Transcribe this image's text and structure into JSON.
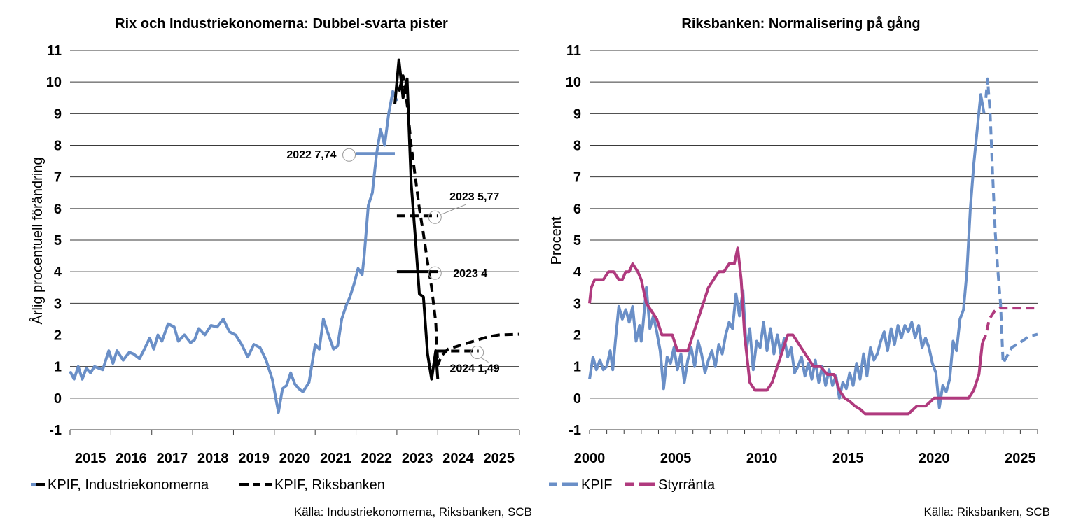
{
  "chart_data": [
    {
      "type": "line",
      "title": "Rix och Industriekonomerna: Dubbel-svarta pister",
      "ylabel": "Årlig procentuell förändring",
      "xlabel": "",
      "ylim": [
        -1,
        11
      ],
      "yticks": [
        "-1",
        "0",
        "1",
        "2",
        "3",
        "4",
        "5",
        "6",
        "7",
        "8",
        "9",
        "10",
        "11"
      ],
      "xlim": [
        2015,
        2026
      ],
      "xticks": [
        "2015",
        "2016",
        "2017",
        "2018",
        "2019",
        "2020",
        "2021",
        "2022",
        "2023",
        "2024",
        "2025"
      ],
      "grid": true,
      "series": [
        {
          "name": "KPIF",
          "color": "#6a8fc7",
          "style": "solid",
          "x": [
            2015.0,
            2015.1,
            2015.2,
            2015.3,
            2015.4,
            2015.5,
            2015.6,
            2015.8,
            2015.95,
            2016.05,
            2016.15,
            2016.3,
            2016.45,
            2016.55,
            2016.7,
            2016.8,
            2016.95,
            2017.05,
            2017.15,
            2017.25,
            2017.4,
            2017.55,
            2017.65,
            2017.8,
            2017.95,
            2018.05,
            2018.15,
            2018.3,
            2018.45,
            2018.6,
            2018.75,
            2018.9,
            2019.05,
            2019.2,
            2019.35,
            2019.5,
            2019.65,
            2019.8,
            2019.95,
            2020.1,
            2020.2,
            2020.3,
            2020.4,
            2020.5,
            2020.6,
            2020.7,
            2020.85,
            2021.0,
            2021.1,
            2021.2,
            2021.3,
            2021.45,
            2021.55,
            2021.65,
            2021.75,
            2021.85,
            2021.95,
            2022.05,
            2022.15,
            2022.2,
            2022.3,
            2022.4,
            2022.5,
            2022.6,
            2022.7,
            2022.8,
            2022.9,
            2023.0
          ],
          "y": [
            0.85,
            0.6,
            1.0,
            0.6,
            0.95,
            0.8,
            1.0,
            0.9,
            1.5,
            1.1,
            1.5,
            1.2,
            1.45,
            1.4,
            1.25,
            1.5,
            1.9,
            1.55,
            2.0,
            1.8,
            2.35,
            2.25,
            1.8,
            2.0,
            1.75,
            1.85,
            2.2,
            2.0,
            2.3,
            2.25,
            2.5,
            2.1,
            2.0,
            1.7,
            1.3,
            1.7,
            1.6,
            1.2,
            0.6,
            -0.45,
            0.3,
            0.4,
            0.8,
            0.45,
            0.3,
            0.2,
            0.5,
            1.7,
            1.55,
            2.5,
            2.1,
            1.55,
            1.65,
            2.5,
            2.9,
            3.2,
            3.6,
            4.1,
            3.9,
            4.5,
            6.1,
            6.5,
            7.7,
            8.5,
            8.0,
            9.0,
            9.7,
            9.4
          ]
        },
        {
          "name": "KPIF, Industriekonomerna",
          "color": "#000000",
          "style": "solid",
          "x": [
            2022.95,
            2023.05,
            2023.15,
            2023.25,
            2023.35,
            2023.45,
            2023.55,
            2023.65,
            2023.75,
            2023.85,
            2023.95,
            2024.0
          ],
          "y": [
            9.3,
            10.7,
            9.5,
            10.1,
            6.8,
            5.1,
            3.3,
            3.2,
            1.4,
            0.6,
            1.5,
            0.6
          ]
        },
        {
          "name": "KPIF, Riksbanken",
          "color": "#000000",
          "style": "dashed",
          "x": [
            2023.05,
            2023.15,
            2023.25,
            2023.35,
            2023.45,
            2023.55,
            2023.65,
            2023.75,
            2023.85,
            2023.95,
            2024.0,
            2024.1,
            2024.25,
            2024.5,
            2024.75,
            2025.0,
            2025.25,
            2025.5,
            2026.0
          ],
          "y": [
            9.7,
            10.2,
            9.3,
            8.0,
            7.0,
            6.0,
            5.2,
            4.3,
            3.5,
            2.4,
            1.05,
            1.35,
            1.55,
            1.65,
            1.75,
            1.85,
            1.95,
            2.0,
            2.02
          ]
        }
      ],
      "annotation_bars": [
        {
          "label": "2022 7,74",
          "value": 7.74,
          "x_start": 2022.0,
          "x_end": 2022.95,
          "color": "#6a8fc7",
          "style": "solid",
          "label_side": "left"
        },
        {
          "label": "2023 5,77",
          "value": 5.77,
          "x_start": 2023.0,
          "x_end": 2024.0,
          "color": "#000000",
          "style": "dashed",
          "label_side": "above"
        },
        {
          "label": "2023 4",
          "value": 4.0,
          "x_start": 2023.0,
          "x_end": 2024.0,
          "color": "#000000",
          "style": "solid",
          "label_side": "right"
        },
        {
          "label": "2024 1,49",
          "value": 1.49,
          "x_start": 2024.0,
          "x_end": 2025.0,
          "color": "#000000",
          "style": "dashed",
          "label_side": "below"
        }
      ],
      "legend": [
        {
          "label": "KPIF, Industriekonomerna",
          "colors": [
            "#6a8fc7",
            "#000000"
          ],
          "style": "solid"
        },
        {
          "label": "KPIF, Riksbanken",
          "colors": [
            "#000000",
            "#000000"
          ],
          "style": "dashed"
        }
      ],
      "source": "Källa: Industriekonomerna, Riksbanken, SCB"
    },
    {
      "type": "line",
      "title": "Riksbanken: Normalisering på gång",
      "ylabel": "Procent",
      "xlabel": "",
      "ylim": [
        -1,
        11
      ],
      "yticks": [
        "-1",
        "0",
        "1",
        "2",
        "3",
        "4",
        "5",
        "6",
        "7",
        "8",
        "9",
        "10",
        "11"
      ],
      "xlim": [
        2000,
        2026
      ],
      "xticks": [
        "2000",
        "2005",
        "2010",
        "2015",
        "2020",
        "2025"
      ],
      "grid": true,
      "series": [
        {
          "name": "KPIF",
          "color": "#6a8fc7",
          "style": "solid",
          "x": [
            2000.0,
            2000.2,
            2000.4,
            2000.6,
            2000.8,
            2001.0,
            2001.2,
            2001.35,
            2001.5,
            2001.7,
            2001.9,
            2002.1,
            2002.3,
            2002.5,
            2002.7,
            2002.9,
            2003.0,
            2003.1,
            2003.3,
            2003.5,
            2003.7,
            2003.9,
            2004.1,
            2004.3,
            2004.5,
            2004.7,
            2004.9,
            2005.1,
            2005.3,
            2005.5,
            2005.7,
            2005.9,
            2006.1,
            2006.3,
            2006.5,
            2006.7,
            2006.9,
            2007.1,
            2007.3,
            2007.5,
            2007.7,
            2007.9,
            2008.1,
            2008.3,
            2008.5,
            2008.7,
            2008.9,
            2009.1,
            2009.3,
            2009.5,
            2009.7,
            2009.9,
            2010.1,
            2010.3,
            2010.5,
            2010.7,
            2010.9,
            2011.1,
            2011.3,
            2011.5,
            2011.7,
            2011.9,
            2012.1,
            2012.3,
            2012.5,
            2012.7,
            2012.9,
            2013.1,
            2013.3,
            2013.5,
            2013.7,
            2013.9,
            2014.1,
            2014.3,
            2014.5,
            2014.7,
            2014.9,
            2015.1,
            2015.3,
            2015.5,
            2015.7,
            2015.9,
            2016.1,
            2016.3,
            2016.5,
            2016.7,
            2016.9,
            2017.1,
            2017.3,
            2017.5,
            2017.7,
            2017.9,
            2018.1,
            2018.3,
            2018.5,
            2018.7,
            2018.9,
            2019.1,
            2019.3,
            2019.5,
            2019.7,
            2019.9,
            2020.1,
            2020.3,
            2020.5,
            2020.7,
            2020.9,
            2021.1,
            2021.3,
            2021.5,
            2021.7,
            2021.9,
            2022.1,
            2022.3,
            2022.5,
            2022.7,
            2022.9
          ],
          "y": [
            0.6,
            1.3,
            0.9,
            1.2,
            0.9,
            1.0,
            1.5,
            0.9,
            1.8,
            2.9,
            2.5,
            2.8,
            2.4,
            2.9,
            1.8,
            2.3,
            1.8,
            2.3,
            3.5,
            2.2,
            2.6,
            2.1,
            1.5,
            0.3,
            1.3,
            1.1,
            1.6,
            0.9,
            1.4,
            0.5,
            1.2,
            1.6,
            1.0,
            1.8,
            1.4,
            0.8,
            1.2,
            1.5,
            1.0,
            1.7,
            1.4,
            2.0,
            2.4,
            2.2,
            3.3,
            2.6,
            3.4,
            1.5,
            2.2,
            0.9,
            1.8,
            1.6,
            2.4,
            1.5,
            2.2,
            1.4,
            2.0,
            1.4,
            1.9,
            1.3,
            1.6,
            0.8,
            1.0,
            1.3,
            0.7,
            1.1,
            0.6,
            1.2,
            0.5,
            1.0,
            0.4,
            0.9,
            0.4,
            0.7,
            0.0,
            0.5,
            0.3,
            0.8,
            0.4,
            1.1,
            0.6,
            1.4,
            0.7,
            1.6,
            1.2,
            1.4,
            1.8,
            2.1,
            1.5,
            2.2,
            1.7,
            2.3,
            1.9,
            2.3,
            2.1,
            2.4,
            1.9,
            2.3,
            1.6,
            1.9,
            1.6,
            1.1,
            0.8,
            -0.3,
            0.4,
            0.2,
            0.6,
            1.8,
            1.5,
            2.5,
            2.8,
            4.0,
            6.0,
            7.4,
            8.5,
            9.6,
            9.0
          ]
        },
        {
          "name": "KPIF prognos",
          "color": "#6a8fc7",
          "style": "dashed",
          "x": [
            2023.0,
            2023.1,
            2023.25,
            2023.4,
            2023.55,
            2023.7,
            2023.85,
            2024.0,
            2024.2,
            2024.5,
            2024.8,
            2025.1,
            2025.5,
            2026.0
          ],
          "y": [
            9.5,
            10.1,
            9.0,
            7.0,
            5.2,
            4.0,
            3.0,
            1.1,
            1.3,
            1.6,
            1.7,
            1.8,
            1.95,
            2.02
          ]
        },
        {
          "name": "Styrränta",
          "color": "#b03a7e",
          "style": "solid",
          "x": [
            2000.0,
            2000.1,
            2000.3,
            2000.5,
            2000.8,
            2001.1,
            2001.4,
            2001.7,
            2001.9,
            2002.1,
            2002.3,
            2002.5,
            2002.8,
            2003.0,
            2003.3,
            2003.6,
            2003.9,
            2004.2,
            2004.5,
            2004.8,
            2005.1,
            2005.4,
            2005.7,
            2006.0,
            2006.3,
            2006.6,
            2006.9,
            2007.2,
            2007.5,
            2007.8,
            2008.1,
            2008.4,
            2008.6,
            2008.8,
            2009.0,
            2009.3,
            2009.6,
            2009.9,
            2010.3,
            2010.6,
            2010.9,
            2011.2,
            2011.5,
            2011.8,
            2012.1,
            2012.4,
            2012.7,
            2013.0,
            2013.4,
            2013.8,
            2014.2,
            2014.5,
            2014.8,
            2015.1,
            2015.4,
            2015.7,
            2016.0,
            2016.5,
            2017.0,
            2017.5,
            2018.0,
            2018.5,
            2019.0,
            2019.5,
            2020.0,
            2020.5,
            2021.0,
            2021.5,
            2022.0,
            2022.3,
            2022.6,
            2022.8
          ],
          "y": [
            3.0,
            3.5,
            3.75,
            3.75,
            3.75,
            4.0,
            4.0,
            3.75,
            3.75,
            4.0,
            4.0,
            4.25,
            4.0,
            3.75,
            3.0,
            2.75,
            2.5,
            2.0,
            2.0,
            2.0,
            1.5,
            1.5,
            1.5,
            2.0,
            2.5,
            3.0,
            3.5,
            3.75,
            4.0,
            4.0,
            4.25,
            4.25,
            4.75,
            3.75,
            2.0,
            0.5,
            0.25,
            0.25,
            0.25,
            0.5,
            1.0,
            1.5,
            2.0,
            2.0,
            1.75,
            1.5,
            1.25,
            1.0,
            1.0,
            0.75,
            0.75,
            0.25,
            0.0,
            -0.1,
            -0.25,
            -0.35,
            -0.5,
            -0.5,
            -0.5,
            -0.5,
            -0.5,
            -0.5,
            -0.25,
            -0.25,
            0.0,
            0.0,
            0.0,
            0.0,
            0.0,
            0.25,
            0.75,
            1.75
          ]
        },
        {
          "name": "Styrränta prognos",
          "color": "#b03a7e",
          "style": "dashed",
          "x": [
            2022.8,
            2023.0,
            2023.2,
            2023.5,
            2023.8,
            2024.2,
            2024.8,
            2025.5,
            2026.0
          ],
          "y": [
            1.75,
            2.0,
            2.5,
            2.75,
            2.85,
            2.85,
            2.85,
            2.85,
            2.85
          ]
        }
      ],
      "legend": [
        {
          "label": "KPIF",
          "color": "#6a8fc7"
        },
        {
          "label": "Styrränta",
          "color": "#b03a7e"
        }
      ],
      "source": "Källa: Riksbanken, SCB"
    }
  ]
}
